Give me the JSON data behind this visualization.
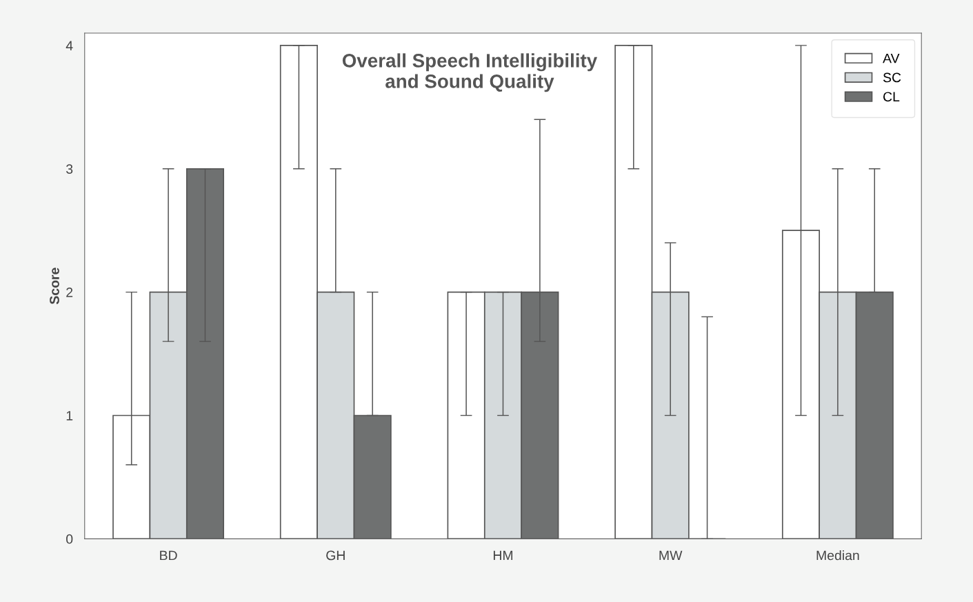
{
  "chart_data": {
    "type": "bar",
    "title": "Overall Speech Intelligibility\nand Sound Quality",
    "ylabel": "Score",
    "categories": [
      "BD",
      "GH",
      "HM",
      "MW",
      "Median"
    ],
    "series": [
      {
        "name": "AV",
        "color": "#ffffff",
        "values": [
          1,
          4,
          2,
          4,
          2.5
        ],
        "errors": [
          [
            0.6,
            2
          ],
          [
            3,
            4
          ],
          [
            1,
            2
          ],
          [
            3,
            4
          ],
          [
            1,
            4
          ]
        ]
      },
      {
        "name": "SC",
        "color": "#d5dadc",
        "values": [
          2,
          2,
          2,
          2,
          2
        ],
        "errors": [
          [
            1.6,
            3
          ],
          [
            2,
            3
          ],
          [
            1,
            2
          ],
          [
            1,
            2.4
          ],
          [
            1,
            3
          ]
        ]
      },
      {
        "name": "CL",
        "color": "#6f7171",
        "values": [
          3,
          1,
          2,
          0,
          2
        ],
        "errors": [
          [
            1.6,
            3
          ],
          [
            1,
            2
          ],
          [
            1.6,
            3.4
          ],
          [
            0,
            1.8
          ],
          [
            2,
            3
          ]
        ]
      }
    ],
    "ylim": [
      0,
      4.1
    ],
    "yticks": [
      0,
      1,
      2,
      3,
      4
    ],
    "grid": false,
    "legend": "top right"
  }
}
